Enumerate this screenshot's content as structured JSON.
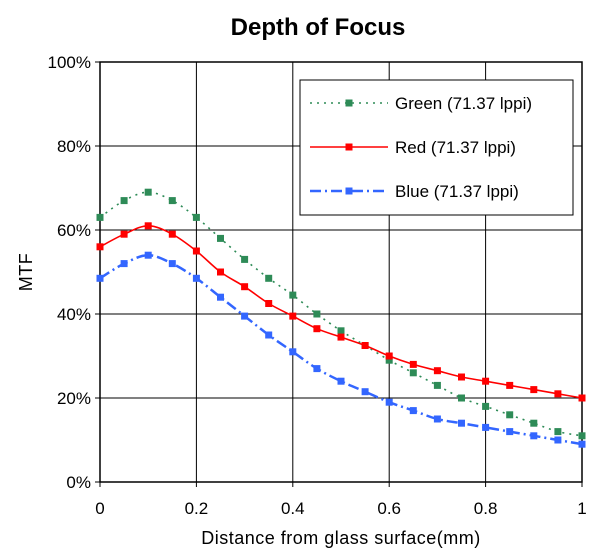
{
  "chart_data": {
    "type": "line",
    "title": "Depth of Focus",
    "xlabel": "Distance from glass surface(mm)",
    "ylabel": "MTF",
    "xlim": [
      0,
      1
    ],
    "ylim": [
      0,
      100
    ],
    "x_ticks": [
      "0",
      "0.2",
      "0.4",
      "0.6",
      "0.8",
      "1"
    ],
    "y_ticks": [
      "0%",
      "20%",
      "40%",
      "60%",
      "80%",
      "100%"
    ],
    "grid": true,
    "legend_position": "top-right",
    "x": [
      0,
      0.05,
      0.1,
      0.15,
      0.2,
      0.25,
      0.3,
      0.35,
      0.4,
      0.45,
      0.5,
      0.55,
      0.6,
      0.65,
      0.7,
      0.75,
      0.8,
      0.85,
      0.9,
      0.95,
      1.0
    ],
    "series": [
      {
        "name": "Green (71.37 lppi)",
        "color": "#2e8b57",
        "line_style": "dotted",
        "values": [
          63,
          67,
          69,
          67,
          63,
          58,
          53,
          48.5,
          44.5,
          40,
          36,
          32.5,
          29,
          26,
          23,
          20,
          18,
          16,
          14,
          12,
          11
        ]
      },
      {
        "name": "Red (71.37 lppi)",
        "color": "#ff0000",
        "line_style": "solid",
        "values": [
          56,
          59,
          61,
          59,
          55,
          50,
          46.5,
          42.5,
          39.5,
          36.5,
          34.5,
          32.5,
          30,
          28,
          26.5,
          25,
          24,
          23,
          22,
          21,
          20
        ]
      },
      {
        "name": "Blue (71.37 lppi)",
        "color": "#3366ff",
        "line_style": "dashdot",
        "values": [
          48.5,
          52,
          54,
          52,
          48.5,
          44,
          39.5,
          35,
          31,
          27,
          24,
          21.5,
          19,
          17,
          15,
          14,
          13,
          12,
          11,
          10,
          9
        ]
      }
    ]
  }
}
